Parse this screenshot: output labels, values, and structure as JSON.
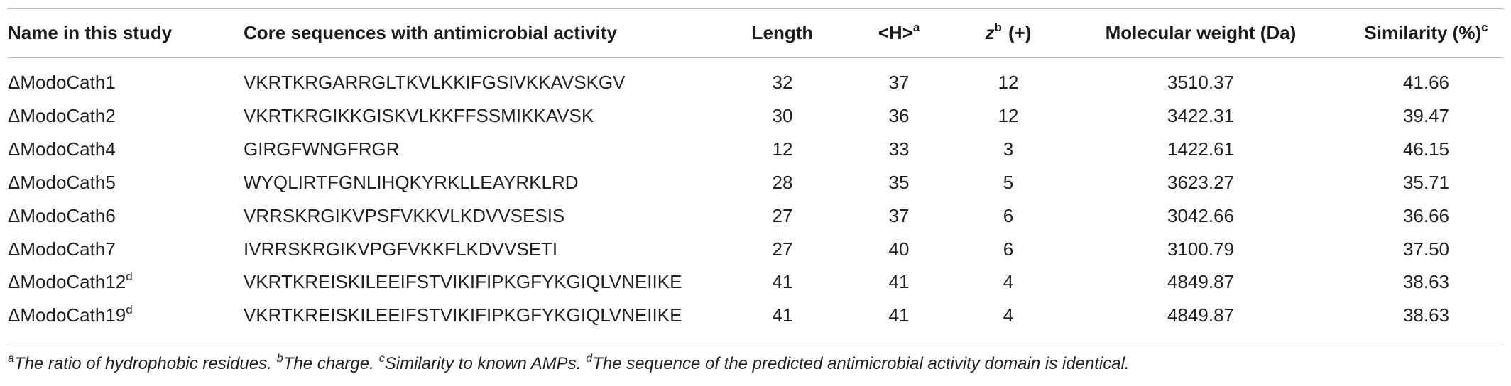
{
  "table": {
    "headers": [
      {
        "text": "Name in this study"
      },
      {
        "text": "Core sequences with antimicrobial activity"
      },
      {
        "text": "Length"
      },
      {
        "text": "<H>",
        "sup": "a"
      },
      {
        "text": "z",
        "sup": "b",
        "after": "(+)"
      },
      {
        "text": "Molecular weight (Da)"
      },
      {
        "text": "Similarity (%)",
        "sup": "c"
      }
    ],
    "rows": [
      [
        {
          "text": "ΔModoCath1"
        },
        "VKRTKRGARRGLTKVLKKIFGSIVKKAVSKGV",
        "32",
        "37",
        "12",
        "3510.37",
        "41.66"
      ],
      [
        {
          "text": "ΔModoCath2"
        },
        "VKRTKRGIKKGISKVLKKFFSSMIKKAVSK",
        "30",
        "36",
        "12",
        "3422.31",
        "39.47"
      ],
      [
        {
          "text": "ΔModoCath4"
        },
        "GIRGFWNGFRGR",
        "12",
        "33",
        "3",
        "1422.61",
        "46.15"
      ],
      [
        {
          "text": "ΔModoCath5"
        },
        "WYQLIRTFGNLIHQKYRKLLEAYRKLRD",
        "28",
        "35",
        "5",
        "3623.27",
        "35.71"
      ],
      [
        {
          "text": "ΔModoCath6"
        },
        "VRRSKRGIKVPSFVKKVLKDVVSESIS",
        "27",
        "37",
        "6",
        "3042.66",
        "36.66"
      ],
      [
        {
          "text": "ΔModoCath7"
        },
        "IVRRSKRGIKVPGFVKKFLKDVVSETI",
        "27",
        "40",
        "6",
        "3100.79",
        "37.50"
      ],
      [
        {
          "text": "ΔModoCath12",
          "sup": "d"
        },
        "VKRTKREISKILEEIFSTVIKIFIPKGFYKGIQLVNEIIKE",
        "41",
        "41",
        "4",
        "4849.87",
        "38.63"
      ],
      [
        {
          "text": "ΔModoCath19",
          "sup": "d"
        },
        "VKRTKREISKILEEIFSTVIKIFIPKGFYKGIQLVNEIIKE",
        "41",
        "41",
        "4",
        "4849.87",
        "38.63"
      ]
    ],
    "footnotes": [
      {
        "sup": "a",
        "text": "The ratio of hydrophobic residues."
      },
      {
        "sup": "b",
        "text": "The charge."
      },
      {
        "sup": "c",
        "text": "Similarity to known AMPs."
      },
      {
        "sup": "d",
        "text": "The sequence of the predicted antimicrobial activity domain is identical."
      }
    ]
  }
}
